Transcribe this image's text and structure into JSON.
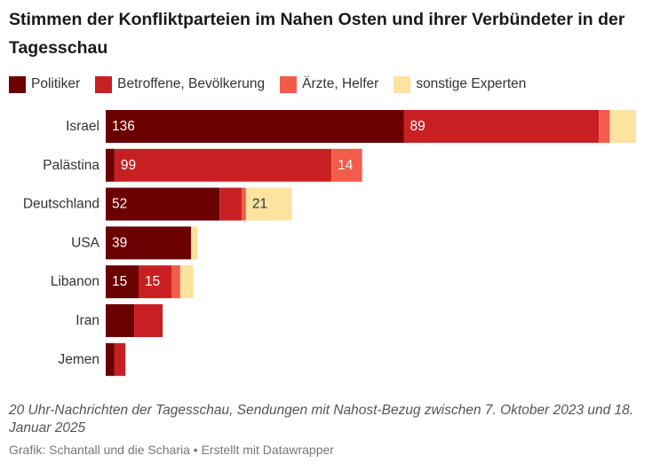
{
  "header": {
    "title": "Stimmen der Konfliktparteien im Nahen Osten und ihrer Verbündeter in der Tagesschau"
  },
  "legend": [
    {
      "label": "Politiker",
      "color": "#6b0000"
    },
    {
      "label": "Betroffene, Bevölkerung",
      "color": "#c82022"
    },
    {
      "label": "Ärzte, Helfer",
      "color": "#f25c4a"
    },
    {
      "label": "sonstige Experten",
      "color": "#fde2a0"
    }
  ],
  "chart_data": {
    "type": "bar",
    "orientation": "horizontal",
    "stacked": true,
    "categories": [
      "Israel",
      "Palästina",
      "Deutschland",
      "USA",
      "Libanon",
      "Iran",
      "Jemen"
    ],
    "series": [
      {
        "name": "Politiker",
        "color": "#6b0000",
        "values": [
          136,
          4,
          52,
          39,
          15,
          13,
          4
        ],
        "labels": [
          "136",
          "",
          "52",
          "39",
          "15",
          "",
          ""
        ]
      },
      {
        "name": "Betroffene, Bevölkerung",
        "color": "#c82022",
        "values": [
          89,
          99,
          10,
          0,
          15,
          13,
          5
        ],
        "labels": [
          "89",
          "99",
          "",
          "",
          "15",
          "",
          ""
        ]
      },
      {
        "name": "Ärzte, Helfer",
        "color": "#f25c4a",
        "values": [
          5,
          14,
          2,
          0,
          4,
          0,
          0
        ],
        "labels": [
          "",
          "14",
          "",
          "",
          "",
          "",
          ""
        ]
      },
      {
        "name": "sonstige Experten",
        "color": "#fde2a0",
        "values": [
          12,
          0,
          21,
          3,
          6,
          0,
          0
        ],
        "labels": [
          "",
          "",
          "21",
          "",
          "",
          "",
          ""
        ]
      }
    ],
    "xlim": [
      0,
      242
    ],
    "grid": false,
    "legend_position": "top-left"
  },
  "footer": {
    "subtitle": "20 Uhr-Nachrichten der Tagesschau, Sendungen mit Nahost-Bezug zwischen 7. Oktober 2023 und 18. Januar 2025",
    "credit": "Grafik: Schantall und die Scharia • Erstellt mit Datawrapper"
  }
}
